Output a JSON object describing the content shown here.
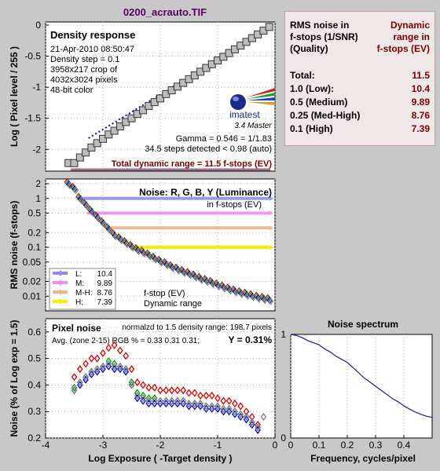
{
  "header": {
    "file_title": "0200_acrauto.TIF"
  },
  "panel_density": {
    "title": "Density response",
    "info_lines": [
      "21-Apr-2010 08:50:47",
      "Density step = 0.1",
      "3958x217 crop of",
      "4032x3024 pixels",
      "48-bit color"
    ],
    "logo_text": "imatest",
    "logo_sub": "3.4  Master",
    "gamma_line": "Gamma = 0.546 = 1/1.83",
    "steps_line": "34.5 steps detected < 0.98 (auto)",
    "total_range_line": "Total dynamic range = 11.5 f-stops (EV)",
    "ylabel": "Log ( Pixel level / 255 )",
    "y_ticks": [
      "0",
      "-0.5",
      "-1",
      "-1.5",
      "-2"
    ]
  },
  "panel_noise": {
    "title": "Noise: R, G, B, Y (Luminance)",
    "subtitle": "in f-stops (EV)",
    "ylabel": "RMS noise (f-stops)",
    "y_ticks": [
      "2",
      "1",
      "0.5",
      "0.2",
      "0.1",
      "0.05",
      "0.02",
      "0.01"
    ],
    "legend": [
      {
        "key": "L:",
        "value": "10.4",
        "color": "#8c8cf0"
      },
      {
        "key": "M:",
        "value": "9.89",
        "color": "#f08cf0"
      },
      {
        "key": "M-H:",
        "value": "8.76",
        "color": "#f0b48c"
      },
      {
        "key": "H:",
        "value": "7.39",
        "color": "#f0f000"
      }
    ],
    "legend_note1": "f-stop (EV)",
    "legend_note2": "Dynamic range"
  },
  "panel_pixel": {
    "title": "Pixel noise",
    "norm_line": "normalzd to 1.5 density range: 198.7 pixels",
    "rgb_line": "Avg. (zone 2-15) RGB % = 0.33  0.31  0.31;",
    "y_value": "Y = 0.31%",
    "ylabel": "Noise (% of Log exp = 1.5)",
    "xlabel": "Log Exposure ( -Target density )",
    "y_ticks": [
      "0.6",
      "0.5",
      "0.4",
      "0.3",
      "0.2"
    ],
    "x_ticks": [
      "-4",
      "-3",
      "-2",
      "-1",
      "0"
    ]
  },
  "panel_spectrum": {
    "title": "Noise spectrum",
    "xlabel": "Frequency, cycles/pixel",
    "x_ticks": [
      "0",
      "0.1",
      "0.2",
      "0.3",
      "0.4"
    ],
    "y_ticks": [
      "1",
      "0"
    ]
  },
  "info_box": {
    "head_left": [
      "RMS noise in",
      "f-stops (1/SNR)",
      "(Quality)"
    ],
    "head_right": [
      "Dynamic",
      "range in",
      "f-stops (EV)"
    ],
    "rows": [
      {
        "label": "Total:",
        "value": "11.5"
      },
      {
        "label": "1.0   (Low):",
        "value": "10.4"
      },
      {
        "label": "0.5   (Medium)",
        "value": "9.89"
      },
      {
        "label": "0.25 (Med-High)",
        "value": "8.76"
      },
      {
        "label": "0.1   (High)",
        "value": "7.39"
      }
    ]
  },
  "chart_data": [
    {
      "type": "line",
      "title": "Density response",
      "ylabel": "Log ( Pixel level / 255 )",
      "ylim": [
        -2.35,
        0.05
      ],
      "xlim": [
        -4,
        0
      ],
      "series": [
        {
          "name": "",
          "x": [
            -3.6,
            -3.5,
            -3.4,
            -3.3,
            -3.2,
            -3.1,
            -3.0,
            -2.9,
            -2.8,
            -2.7,
            -2.6,
            -2.5,
            -2.4,
            -2.3,
            -2.2,
            -2.1,
            -2.0,
            -1.9,
            -1.8,
            -1.7,
            -1.6,
            -1.5,
            -1.4,
            -1.3,
            -1.2,
            -1.1,
            -1.0,
            -0.9,
            -0.8,
            -0.7,
            -0.6,
            -0.5,
            -0.4,
            -0.3,
            -0.2,
            -0.1
          ],
          "values": [
            -2.22,
            -2.22,
            -2.13,
            -2.05,
            -1.97,
            -1.9,
            -1.83,
            -1.76,
            -1.7,
            -1.63,
            -1.56,
            -1.5,
            -1.43,
            -1.37,
            -1.3,
            -1.24,
            -1.18,
            -1.11,
            -1.05,
            -0.99,
            -0.93,
            -0.87,
            -0.81,
            -0.75,
            -0.69,
            -0.63,
            -0.57,
            -0.51,
            -0.45,
            -0.39,
            -0.33,
            -0.27,
            -0.21,
            -0.15,
            -0.09,
            -0.03
          ]
        },
        {
          "name": "",
          "x": [
            -3.25,
            -1.2
          ],
          "values": [
            -1.82,
            -0.67
          ]
        }
      ]
    },
    {
      "type": "scatter",
      "title": "Noise: R, G, B, Y (Luminance)",
      "ylabel": "RMS noise (f-stops)",
      "y_scale": "log",
      "ylim": [
        0.005,
        2.5
      ],
      "xlim": [
        -4,
        0
      ],
      "series": [
        {
          "name": "Y",
          "x": [
            -3.6,
            -3.5,
            -3.4,
            -3.3,
            -3.2,
            -3.1,
            -3.0,
            -2.9,
            -2.8,
            -2.7,
            -2.6,
            -2.5,
            -2.4,
            -2.3,
            -2.2,
            -2.1,
            -2.0,
            -1.9,
            -1.8,
            -1.7,
            -1.6,
            -1.5,
            -1.4,
            -1.3,
            -1.2,
            -1.1,
            -1.0,
            -0.9,
            -0.8,
            -0.7,
            -0.6,
            -0.5,
            -0.4,
            -0.3,
            -0.2,
            -0.1
          ],
          "values": [
            2.0,
            1.6,
            1.0,
            0.75,
            0.55,
            0.42,
            0.32,
            0.24,
            0.18,
            0.15,
            0.125,
            0.105,
            0.09,
            0.08,
            0.07,
            0.06,
            0.052,
            0.046,
            0.04,
            0.036,
            0.032,
            0.029,
            0.026,
            0.023,
            0.021,
            0.019,
            0.017,
            0.0155,
            0.014,
            0.0128,
            0.0118,
            0.011,
            0.0102,
            0.0095,
            0.009,
            0.0085
          ]
        }
      ]
    },
    {
      "type": "scatter",
      "title": "Pixel noise",
      "ylabel": "Noise (% of Log exp = 1.5)",
      "xlabel": "Log Exposure ( -Target density )",
      "ylim": [
        0.2,
        0.65
      ],
      "xlim": [
        -4,
        0
      ],
      "series": [
        {
          "name": "R",
          "color": "#e00000",
          "x": [
            -3.5,
            -3.4,
            -3.3,
            -3.2,
            -3.1,
            -3.0,
            -2.9,
            -2.8,
            -2.7,
            -2.6,
            -2.5,
            -2.4,
            -2.3,
            -2.2,
            -2.1,
            -2.0,
            -1.9,
            -1.8,
            -1.7,
            -1.6,
            -1.5,
            -1.4,
            -1.3,
            -1.2,
            -1.1,
            -1.0,
            -0.9,
            -0.8,
            -0.7,
            -0.6,
            -0.5,
            -0.4,
            -0.3
          ],
          "values": [
            0.43,
            0.46,
            0.48,
            0.5,
            0.5,
            0.52,
            0.54,
            0.55,
            0.53,
            0.51,
            0.46,
            0.41,
            0.4,
            0.39,
            0.39,
            0.38,
            0.38,
            0.38,
            0.38,
            0.38,
            0.37,
            0.37,
            0.36,
            0.36,
            0.36,
            0.35,
            0.34,
            0.34,
            0.33,
            0.32,
            0.3,
            0.28,
            0.25
          ]
        },
        {
          "name": "G",
          "color": "#00a000",
          "x": [
            -3.5,
            -3.4,
            -3.3,
            -3.2,
            -3.1,
            -3.0,
            -2.9,
            -2.8,
            -2.7,
            -2.6,
            -2.5,
            -2.4,
            -2.3,
            -2.2,
            -2.1,
            -2.0,
            -1.9,
            -1.8,
            -1.7,
            -1.6,
            -1.5,
            -1.4,
            -1.3,
            -1.2,
            -1.1,
            -1.0,
            -0.9,
            -0.8,
            -0.7,
            -0.6,
            -0.5,
            -0.4,
            -0.3
          ],
          "values": [
            0.39,
            0.41,
            0.43,
            0.45,
            0.46,
            0.47,
            0.49,
            0.48,
            0.47,
            0.46,
            0.41,
            0.37,
            0.36,
            0.35,
            0.35,
            0.34,
            0.34,
            0.34,
            0.34,
            0.34,
            0.33,
            0.33,
            0.33,
            0.32,
            0.32,
            0.32,
            0.31,
            0.31,
            0.3,
            0.29,
            0.28,
            0.26,
            0.24
          ]
        },
        {
          "name": "B",
          "color": "#0000e0",
          "x": [
            -3.5,
            -3.4,
            -3.3,
            -3.2,
            -3.1,
            -3.0,
            -2.9,
            -2.8,
            -2.7,
            -2.6,
            -2.5,
            -2.4,
            -2.3,
            -2.2,
            -2.1,
            -2.0,
            -1.9,
            -1.8,
            -1.7,
            -1.6,
            -1.5,
            -1.4,
            -1.3,
            -1.2,
            -1.1,
            -1.0,
            -0.9,
            -0.8,
            -0.7,
            -0.6,
            -0.5,
            -0.4,
            -0.3
          ],
          "values": [
            0.38,
            0.4,
            0.42,
            0.44,
            0.45,
            0.46,
            0.47,
            0.46,
            0.46,
            0.45,
            0.4,
            0.35,
            0.34,
            0.33,
            0.33,
            0.33,
            0.33,
            0.33,
            0.33,
            0.33,
            0.32,
            0.32,
            0.32,
            0.31,
            0.31,
            0.31,
            0.3,
            0.3,
            0.29,
            0.28,
            0.27,
            0.25,
            0.23
          ]
        },
        {
          "name": "Y",
          "color": "#808080",
          "x": [
            -3.5,
            -3.4,
            -3.3,
            -3.2,
            -3.1,
            -3.0,
            -2.9,
            -2.8,
            -2.7,
            -2.6,
            -2.5,
            -2.4,
            -2.3,
            -2.2,
            -2.1,
            -2.0,
            -1.9,
            -1.8,
            -1.7,
            -1.6,
            -1.5,
            -1.4,
            -1.3,
            -1.2,
            -1.1,
            -1.0,
            -0.9,
            -0.8,
            -0.7,
            -0.6,
            -0.5,
            -0.4,
            -0.3,
            -0.2
          ],
          "values": [
            0.38,
            0.41,
            0.43,
            0.45,
            0.46,
            0.47,
            0.48,
            0.47,
            0.47,
            0.46,
            0.4,
            0.36,
            0.35,
            0.34,
            0.34,
            0.34,
            0.34,
            0.34,
            0.34,
            0.34,
            0.33,
            0.33,
            0.33,
            0.32,
            0.32,
            0.32,
            0.31,
            0.31,
            0.3,
            0.29,
            0.28,
            0.26,
            0.24,
            0.28
          ]
        }
      ]
    },
    {
      "type": "line",
      "title": "Noise spectrum",
      "xlabel": "Frequency, cycles/pixel",
      "xlim": [
        0,
        0.5
      ],
      "ylim": [
        0,
        1
      ],
      "series": [
        {
          "name": "",
          "x": [
            0,
            0.02,
            0.04,
            0.06,
            0.08,
            0.1,
            0.12,
            0.14,
            0.16,
            0.18,
            0.2,
            0.22,
            0.24,
            0.26,
            0.28,
            0.3,
            0.32,
            0.34,
            0.36,
            0.38,
            0.4,
            0.42,
            0.44,
            0.46,
            0.48,
            0.5
          ],
          "values": [
            1.0,
            0.99,
            0.97,
            0.94,
            0.92,
            0.9,
            0.86,
            0.83,
            0.79,
            0.76,
            0.73,
            0.68,
            0.63,
            0.58,
            0.54,
            0.5,
            0.46,
            0.42,
            0.38,
            0.35,
            0.31,
            0.28,
            0.25,
            0.23,
            0.21,
            0.2
          ]
        }
      ]
    }
  ]
}
